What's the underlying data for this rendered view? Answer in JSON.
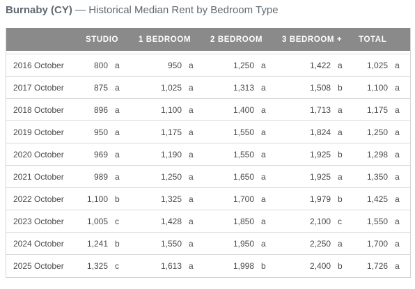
{
  "title": {
    "main": "Burnaby (CY)",
    "separator": "—",
    "subtitle": "Historical Median Rent by Bedroom Type"
  },
  "table": {
    "headers": [
      "STUDIO",
      "1 BEDROOM",
      "2 BEDROOM",
      "3 BEDROOM +",
      "TOTAL"
    ],
    "rows": [
      {
        "period": "2016 October",
        "cells": [
          [
            "800",
            "a"
          ],
          [
            "950",
            "a"
          ],
          [
            "1,250",
            "a"
          ],
          [
            "1,422",
            "a"
          ],
          [
            "1,025",
            "a"
          ]
        ]
      },
      {
        "period": "2017 October",
        "cells": [
          [
            "875",
            "a"
          ],
          [
            "1,025",
            "a"
          ],
          [
            "1,313",
            "a"
          ],
          [
            "1,508",
            "b"
          ],
          [
            "1,100",
            "a"
          ]
        ]
      },
      {
        "period": "2018 October",
        "cells": [
          [
            "896",
            "a"
          ],
          [
            "1,100",
            "a"
          ],
          [
            "1,400",
            "a"
          ],
          [
            "1,713",
            "a"
          ],
          [
            "1,175",
            "a"
          ]
        ]
      },
      {
        "period": "2019 October",
        "cells": [
          [
            "950",
            "a"
          ],
          [
            "1,175",
            "a"
          ],
          [
            "1,550",
            "a"
          ],
          [
            "1,824",
            "a"
          ],
          [
            "1,250",
            "a"
          ]
        ]
      },
      {
        "period": "2020 October",
        "cells": [
          [
            "969",
            "a"
          ],
          [
            "1,190",
            "a"
          ],
          [
            "1,550",
            "a"
          ],
          [
            "1,925",
            "b"
          ],
          [
            "1,298",
            "a"
          ]
        ]
      },
      {
        "period": "2021 October",
        "cells": [
          [
            "989",
            "a"
          ],
          [
            "1,250",
            "a"
          ],
          [
            "1,650",
            "a"
          ],
          [
            "1,925",
            "a"
          ],
          [
            "1,350",
            "a"
          ]
        ]
      },
      {
        "period": "2022 October",
        "cells": [
          [
            "1,100",
            "b"
          ],
          [
            "1,325",
            "a"
          ],
          [
            "1,700",
            "a"
          ],
          [
            "1,979",
            "b"
          ],
          [
            "1,425",
            "a"
          ]
        ]
      },
      {
        "period": "2023 October",
        "cells": [
          [
            "1,005",
            "c"
          ],
          [
            "1,428",
            "a"
          ],
          [
            "1,850",
            "a"
          ],
          [
            "2,100",
            "c"
          ],
          [
            "1,550",
            "a"
          ]
        ]
      },
      {
        "period": "2024 October",
        "cells": [
          [
            "1,241",
            "b"
          ],
          [
            "1,550",
            "a"
          ],
          [
            "1,950",
            "a"
          ],
          [
            "2,250",
            "a"
          ],
          [
            "1,700",
            "a"
          ]
        ]
      },
      {
        "period": "2025 October",
        "cells": [
          [
            "1,325",
            "c"
          ],
          [
            "1,613",
            "a"
          ],
          [
            "1,998",
            "b"
          ],
          [
            "2,400",
            "b"
          ],
          [
            "1,726",
            "a"
          ]
        ]
      }
    ]
  },
  "colors": {
    "header_bg": "#8a8a8a",
    "header_text": "#ffffff",
    "title_text": "#5f6a72",
    "body_text": "#4a4a4a",
    "row_border": "#d9d9d9"
  }
}
